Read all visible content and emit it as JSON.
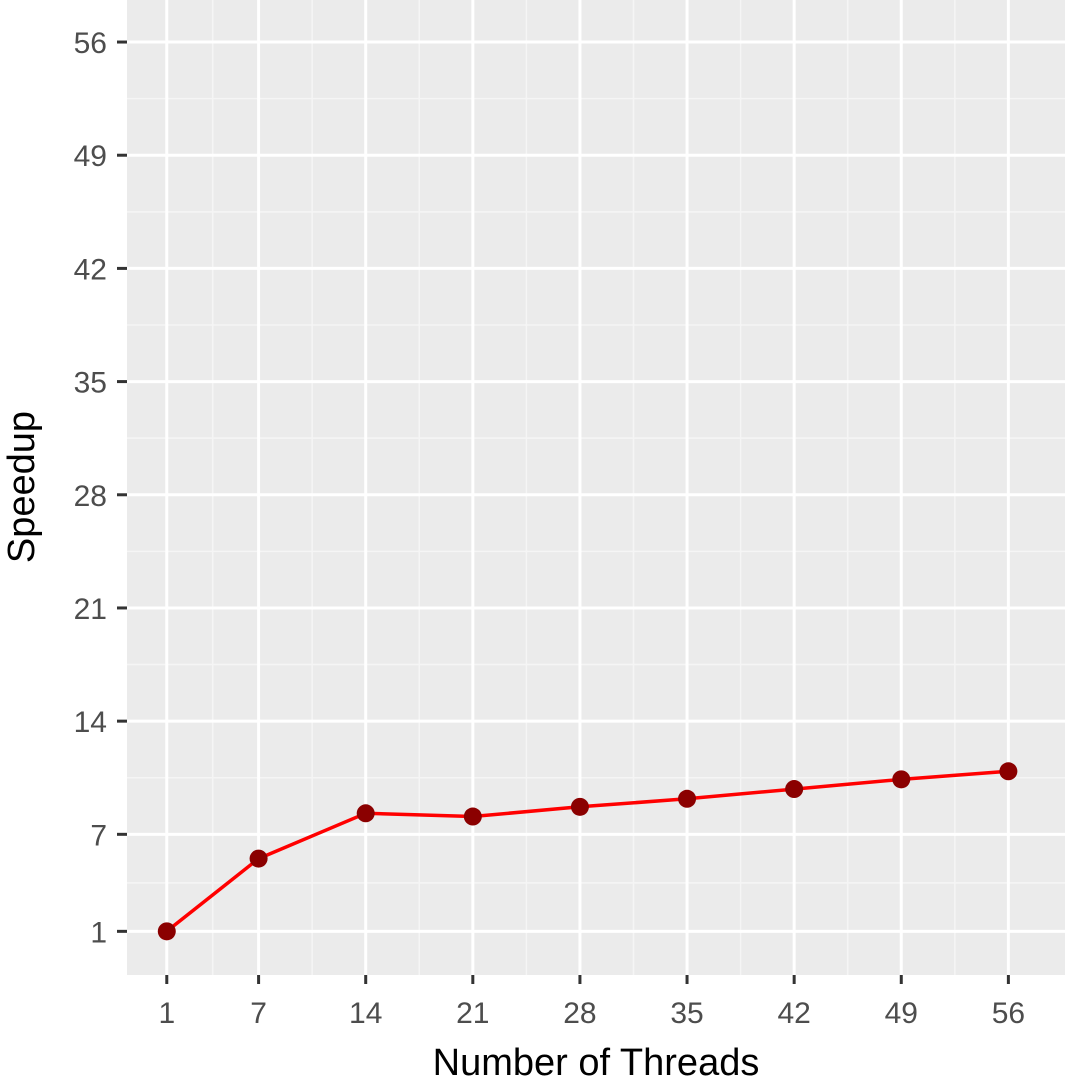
{
  "chart_data": {
    "type": "line",
    "title": "",
    "xlabel": "Number of Threads",
    "ylabel": "Speedup",
    "x_ticks": [
      1,
      7,
      14,
      21,
      28,
      35,
      42,
      49,
      56
    ],
    "y_ticks": [
      1,
      7,
      14,
      21,
      28,
      35,
      42,
      49,
      56
    ],
    "xlim": [
      -1.6,
      59.7
    ],
    "ylim": [
      -1.7,
      58.6
    ],
    "grid": true,
    "legend": "none",
    "series": [
      {
        "line_color": "#ff0000",
        "point_color": "#8b0000",
        "x": [
          1,
          7,
          14,
          21,
          28,
          35,
          42,
          49,
          56
        ],
        "y": [
          1.0,
          5.5,
          8.3,
          8.1,
          8.7,
          9.2,
          9.8,
          10.4,
          10.9
        ]
      }
    ]
  },
  "colors": {
    "panel_background": "#ebebeb",
    "grid_major": "#ffffff",
    "grid_minor": "#f5f5f5",
    "tick_text": "#4d4d4d",
    "axis_title": "#000000"
  }
}
